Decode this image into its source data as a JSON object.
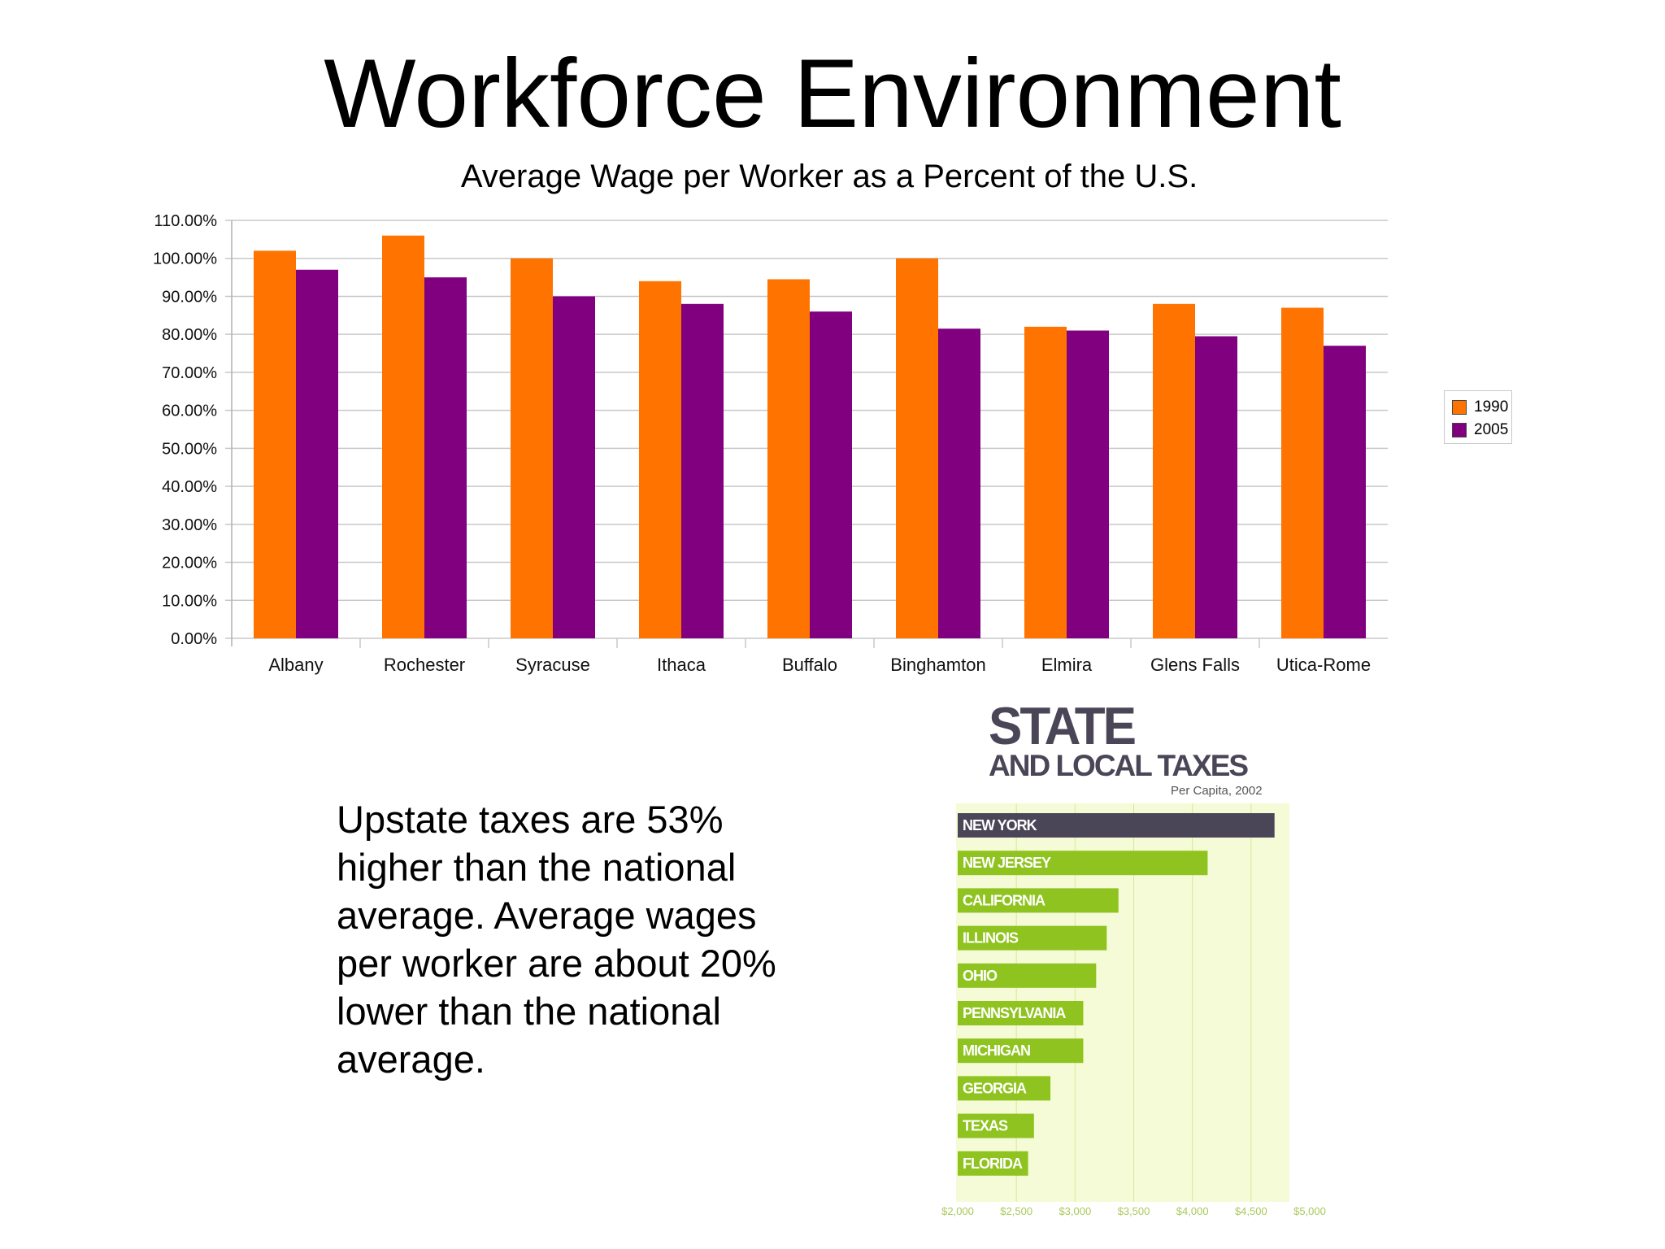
{
  "slide": {
    "title": "Workforce Environment",
    "summary_text": "Upstate taxes are 53% higher than the national average. Average wages per worker are about 20% lower than the national average."
  },
  "colors": {
    "series_1990": "#ff7300",
    "series_2005": "#800080",
    "tax_highlight": "#4b4657",
    "tax_bar": "#8fc31f",
    "tax_background": "#f5fbd6"
  },
  "chart_data": [
    {
      "type": "bar",
      "title": "Average Wage per Worker as a Percent of the U.S.",
      "xlabel": "",
      "ylabel": "",
      "categories": [
        "Albany",
        "Rochester",
        "Syracuse",
        "Ithaca",
        "Buffalo",
        "Binghamton",
        "Elmira",
        "Glens Falls",
        "Utica-Rome"
      ],
      "series": [
        {
          "name": "1990",
          "values": [
            102,
            106,
            100,
            94,
            94.5,
            100,
            82,
            88,
            87
          ]
        },
        {
          "name": "2005",
          "values": [
            97,
            95,
            90,
            88,
            86,
            81.5,
            81,
            79.5,
            77
          ]
        }
      ],
      "ylim": [
        0,
        110
      ],
      "yticks": [
        "0.00%",
        "10.00%",
        "20.00%",
        "30.00%",
        "40.00%",
        "50.00%",
        "60.00%",
        "70.00%",
        "80.00%",
        "90.00%",
        "100.00%",
        "110.00%"
      ],
      "grid": true,
      "legend_position": "right"
    },
    {
      "type": "bar",
      "orientation": "horizontal",
      "title": "STATE",
      "title_line2": "AND LOCAL TAXES",
      "subtitle": "Per Capita, 2002",
      "categories": [
        "NEW YORK",
        "NEW JERSEY",
        "CALIFORNIA",
        "ILLINOIS",
        "OHIO",
        "PENNSYLVANIA",
        "MICHIGAN",
        "GEORGIA",
        "TEXAS",
        "FLORIDA"
      ],
      "values": [
        4700,
        4130,
        3370,
        3270,
        3180,
        3070,
        3070,
        2790,
        2650,
        2600
      ],
      "xticks": [
        "$2,000",
        "$2,500",
        "$3,000",
        "$3,500",
        "$4,000",
        "$4,500",
        "$5,000"
      ],
      "xlim": [
        2000,
        5000
      ],
      "highlight_category": "NEW YORK",
      "grid": true
    }
  ]
}
